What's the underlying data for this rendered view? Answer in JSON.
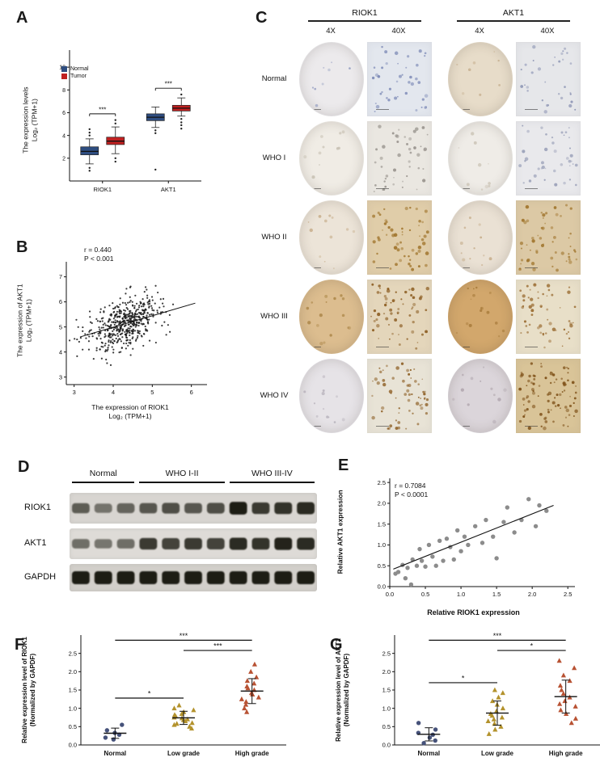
{
  "letters": {
    "A": "A",
    "B": "B",
    "C": "C",
    "D": "D",
    "E": "E",
    "F": "F",
    "G": "G"
  },
  "chart_data": [
    {
      "panel": "A",
      "type": "box",
      "legend": [
        {
          "label": "Normal",
          "color": "#2e4d80"
        },
        {
          "label": "Tumor",
          "color": "#c02020"
        }
      ],
      "ylabel_line1": "The expression levels",
      "ylabel_line2": "Log₂ (TPM+1)",
      "categories": [
        "RIOK1",
        "AKT1"
      ],
      "yticks": [
        2,
        4,
        6,
        8,
        10
      ],
      "ylim": [
        0,
        11.5
      ],
      "sig_label": "***",
      "sig_y": {
        "RIOK1": 5.9,
        "AKT1": 8.15
      },
      "boxes": [
        {
          "gene": "RIOK1",
          "group": "Normal",
          "color": "#2e4d80",
          "q1": 2.3,
          "median": 2.6,
          "q3": 3.0,
          "whisker_lo": 1.5,
          "whisker_hi": 3.7,
          "outliers": [
            0.9,
            1.15,
            4.0,
            4.25,
            4.55
          ]
        },
        {
          "gene": "RIOK1",
          "group": "Tumor",
          "color": "#c02020",
          "q1": 3.2,
          "median": 3.5,
          "q3": 3.85,
          "whisker_lo": 2.4,
          "whisker_hi": 4.75,
          "outliers": [
            1.7,
            2.0,
            5.05,
            5.35
          ]
        },
        {
          "gene": "AKT1",
          "group": "Normal",
          "color": "#2e4d80",
          "q1": 5.3,
          "median": 5.6,
          "q3": 5.9,
          "whisker_lo": 4.7,
          "whisker_hi": 6.5,
          "outliers": [
            1.0,
            4.2,
            4.45
          ]
        },
        {
          "gene": "AKT1",
          "group": "Tumor",
          "color": "#c02020",
          "q1": 6.15,
          "median": 6.4,
          "q3": 6.65,
          "whisker_lo": 5.7,
          "whisker_hi": 7.3,
          "outliers": [
            4.6,
            4.9,
            5.15,
            5.45,
            7.6
          ]
        }
      ]
    },
    {
      "panel": "B",
      "type": "scatter",
      "annotation_r": "r = 0.440",
      "annotation_p": "P < 0.001",
      "xlabel_line1": "The expression of RIOK1",
      "xlabel_line2": "Log₂ (TPM+1)",
      "ylabel_line1": "The expression of AKT1",
      "ylabel_line2": "Log₂ (TPM+1)",
      "xticks": [
        3,
        4,
        5,
        6
      ],
      "yticks": [
        3,
        4,
        5,
        6,
        7
      ],
      "xlim": [
        2.8,
        6.4
      ],
      "ylim": [
        2.7,
        7.6
      ],
      "n_points": 520,
      "cluster_center": [
        4.3,
        5.15
      ],
      "cluster_sd": [
        0.45,
        0.52
      ],
      "correlation": 0.44,
      "trend_line": [
        [
          3.15,
          4.6
        ],
        [
          6.1,
          5.95
        ]
      ],
      "point_color": "#1a1a1a"
    },
    {
      "panel": "E",
      "type": "scatter",
      "annotation_r": "r = 0.7084",
      "annotation_p": "P < 0.0001",
      "xlabel_line1": "Relative RIOK1 expression",
      "ylabel_line1": "Relative AKT1 expression",
      "xticks": [
        "0.0",
        "0.5",
        "1.0",
        "1.5",
        "2.0",
        "2.5"
      ],
      "yticks": [
        "0.0",
        "0.5",
        "1.0",
        "1.5",
        "2.0",
        "2.5"
      ],
      "xlim": [
        0,
        2.6
      ],
      "ylim": [
        0,
        2.6
      ],
      "point_color": "#8c8c8c",
      "trend_line": [
        [
          0.05,
          0.42
        ],
        [
          2.3,
          1.95
        ]
      ],
      "points": [
        [
          0.08,
          0.31
        ],
        [
          0.12,
          0.35
        ],
        [
          0.18,
          0.52
        ],
        [
          0.22,
          0.2
        ],
        [
          0.25,
          0.45
        ],
        [
          0.3,
          0.05
        ],
        [
          0.32,
          0.65
        ],
        [
          0.38,
          0.5
        ],
        [
          0.42,
          0.9
        ],
        [
          0.45,
          0.62
        ],
        [
          0.5,
          0.48
        ],
        [
          0.55,
          1.0
        ],
        [
          0.6,
          0.72
        ],
        [
          0.65,
          0.5
        ],
        [
          0.7,
          1.1
        ],
        [
          0.75,
          0.62
        ],
        [
          0.8,
          1.15
        ],
        [
          0.85,
          0.95
        ],
        [
          0.9,
          0.65
        ],
        [
          0.95,
          1.35
        ],
        [
          1.0,
          0.85
        ],
        [
          1.05,
          1.2
        ],
        [
          1.1,
          1.0
        ],
        [
          1.2,
          1.45
        ],
        [
          1.3,
          1.05
        ],
        [
          1.35,
          1.6
        ],
        [
          1.45,
          1.2
        ],
        [
          1.5,
          0.68
        ],
        [
          1.6,
          1.55
        ],
        [
          1.65,
          1.9
        ],
        [
          1.75,
          1.3
        ],
        [
          1.85,
          1.6
        ],
        [
          1.95,
          2.1
        ],
        [
          2.05,
          1.45
        ],
        [
          2.1,
          1.95
        ],
        [
          2.2,
          1.82
        ]
      ]
    },
    {
      "panel": "F",
      "type": "dot",
      "ylabel_line1": "Relative expression level of RIOK1",
      "ylabel_line2": "(Normalized by GAPDF)",
      "yticks": [
        "0.0",
        "0.5",
        "1.0",
        "1.5",
        "2.0",
        "2.5"
      ],
      "ylim": [
        0,
        3.0
      ],
      "categories": [
        "Normal",
        "Low grade",
        "High grade"
      ],
      "groups": [
        {
          "label": "Normal",
          "marker": "circle",
          "color": "#46527a",
          "mean": 0.32,
          "sd": 0.14,
          "values": [
            0.15,
            0.2,
            0.28,
            0.33,
            0.4,
            0.55
          ]
        },
        {
          "label": "Low grade",
          "marker": "triangle",
          "color": "#b3922c",
          "mean": 0.74,
          "sd": 0.18,
          "values": [
            0.45,
            0.5,
            0.55,
            0.58,
            0.6,
            0.65,
            0.68,
            0.7,
            0.73,
            0.75,
            0.78,
            0.82,
            0.85,
            0.9,
            0.95,
            1.0,
            1.08
          ]
        },
        {
          "label": "High grade",
          "marker": "triangle",
          "color": "#b85233",
          "mean": 1.47,
          "sd": 0.34,
          "values": [
            0.9,
            1.0,
            1.1,
            1.18,
            1.25,
            1.3,
            1.38,
            1.42,
            1.5,
            1.55,
            1.6,
            1.68,
            1.75,
            1.85,
            2.0,
            2.2
          ]
        }
      ],
      "significance": [
        {
          "from": 0,
          "to": 2,
          "label": "***",
          "y": 2.86
        },
        {
          "from": 1,
          "to": 2,
          "label": "***",
          "y": 2.58
        },
        {
          "from": 0,
          "to": 1,
          "label": "*",
          "y": 1.28
        }
      ]
    },
    {
      "panel": "G",
      "type": "dot",
      "ylabel_line1": "Relative expression level of AKT1",
      "ylabel_line2": "(Normalized by GAPDF)",
      "yticks": [
        "0.0",
        "0.5",
        "1.0",
        "1.5",
        "2.0",
        "2.5"
      ],
      "ylim": [
        0,
        3.0
      ],
      "categories": [
        "Normal",
        "Low grade",
        "High grade"
      ],
      "groups": [
        {
          "label": "Normal",
          "marker": "circle",
          "color": "#46527a",
          "mean": 0.29,
          "sd": 0.18,
          "values": [
            0.05,
            0.12,
            0.2,
            0.28,
            0.33,
            0.42,
            0.6
          ]
        },
        {
          "label": "Low grade",
          "marker": "triangle",
          "color": "#b3922c",
          "mean": 0.87,
          "sd": 0.33,
          "values": [
            0.3,
            0.42,
            0.5,
            0.58,
            0.65,
            0.7,
            0.75,
            0.8,
            0.85,
            0.92,
            1.0,
            1.1,
            1.2,
            1.3,
            1.42,
            1.5
          ]
        },
        {
          "label": "High grade",
          "marker": "triangle",
          "color": "#b85233",
          "mean": 1.32,
          "sd": 0.45,
          "values": [
            0.6,
            0.72,
            0.85,
            0.95,
            1.05,
            1.12,
            1.2,
            1.3,
            1.4,
            1.5,
            1.62,
            1.75,
            1.9,
            2.1,
            2.3
          ]
        }
      ],
      "significance": [
        {
          "from": 0,
          "to": 2,
          "label": "***",
          "y": 2.86
        },
        {
          "from": 1,
          "to": 2,
          "label": "*",
          "y": 2.58
        },
        {
          "from": 0,
          "to": 1,
          "label": "*",
          "y": 1.7
        }
      ]
    }
  ],
  "panels": {
    "C": {
      "group_headers": [
        "RIOK1",
        "AKT1"
      ],
      "mag_headers": [
        "4X",
        "40X",
        "4X",
        "40X"
      ],
      "rows": [
        {
          "label": "Normal",
          "cells": [
            {
              "shape": "circle",
              "base": "#eceaec",
              "speckle": "#9aa3c4",
              "density": 8
            },
            {
              "shape": "square",
              "base": "#e3e7ee",
              "speckle": "#7f8cb8",
              "density": 42
            },
            {
              "shape": "circle",
              "base": "#e7dcc9",
              "speckle": "#c9b394",
              "density": 8
            },
            {
              "shape": "square",
              "base": "#e6e7ea",
              "speckle": "#8e96b5",
              "density": 32
            }
          ]
        },
        {
          "label": "WHO I",
          "cells": [
            {
              "shape": "circle",
              "base": "#f0ece5",
              "speckle": "#c9c2b5",
              "density": 10
            },
            {
              "shape": "square",
              "base": "#eae7e1",
              "speckle": "#9a958f",
              "density": 46
            },
            {
              "shape": "circle",
              "base": "#efece7",
              "speckle": "#cfc8bb",
              "density": 10
            },
            {
              "shape": "square",
              "base": "#e9e9ec",
              "speckle": "#9aa0b8",
              "density": 40
            }
          ]
        },
        {
          "label": "WHO II",
          "cells": [
            {
              "shape": "circle",
              "base": "#ece4d8",
              "speckle": "#cbb393",
              "density": 12
            },
            {
              "shape": "square",
              "base": "#e0cda9",
              "speckle": "#a1762e",
              "density": 55
            },
            {
              "shape": "circle",
              "base": "#eae1d4",
              "speckle": "#c7ae8c",
              "density": 12
            },
            {
              "shape": "square",
              "base": "#dcc9a5",
              "speckle": "#a1762e",
              "density": 55
            }
          ]
        },
        {
          "label": "WHO III",
          "cells": [
            {
              "shape": "circle",
              "base": "#dcbd8f",
              "speckle": "#b08b4e",
              "density": 16
            },
            {
              "shape": "square",
              "base": "#e4d6bb",
              "speckle": "#8a5a1e",
              "density": 60
            },
            {
              "shape": "circle",
              "base": "#d2a76c",
              "speckle": "#a87c3c",
              "density": 16
            },
            {
              "shape": "square",
              "base": "#e8dfc8",
              "speckle": "#96662a",
              "density": 55
            }
          ]
        },
        {
          "label": "WHO IV",
          "cells": [
            {
              "shape": "circle",
              "base": "#e6e3e7",
              "speckle": "#b9b4bd",
              "density": 12
            },
            {
              "shape": "square",
              "base": "#e8e3d6",
              "speckle": "#8a5a1e",
              "density": 62
            },
            {
              "shape": "circle",
              "base": "#dbd5da",
              "speckle": "#b3a9b0",
              "density": 12
            },
            {
              "shape": "square",
              "base": "#d9c498",
              "speckle": "#7d4f16",
              "density": 85
            }
          ]
        }
      ]
    },
    "D": {
      "lane_groups": [
        {
          "label": "Normal",
          "lanes": 3
        },
        {
          "label": "WHO I-II",
          "lanes": 4
        },
        {
          "label": "WHO III-IV",
          "lanes": 4
        }
      ],
      "blots": [
        {
          "label": "RIOK1",
          "bg": "#d8d5d1",
          "band_intensities": [
            0.5,
            0.35,
            0.45,
            0.55,
            0.6,
            0.55,
            0.6,
            0.95,
            0.75,
            0.8,
            0.85
          ]
        },
        {
          "label": "AKT1",
          "bg": "#dedbd7",
          "band_intensities": [
            0.4,
            0.35,
            0.4,
            0.75,
            0.7,
            0.75,
            0.7,
            0.85,
            0.8,
            0.9,
            0.85
          ]
        },
        {
          "label": "GAPDH",
          "bg": "#d2cfca",
          "band_intensities": [
            0.95,
            0.95,
            0.95,
            0.95,
            0.95,
            0.95,
            0.95,
            0.95,
            0.95,
            0.95,
            0.95
          ]
        }
      ]
    }
  }
}
